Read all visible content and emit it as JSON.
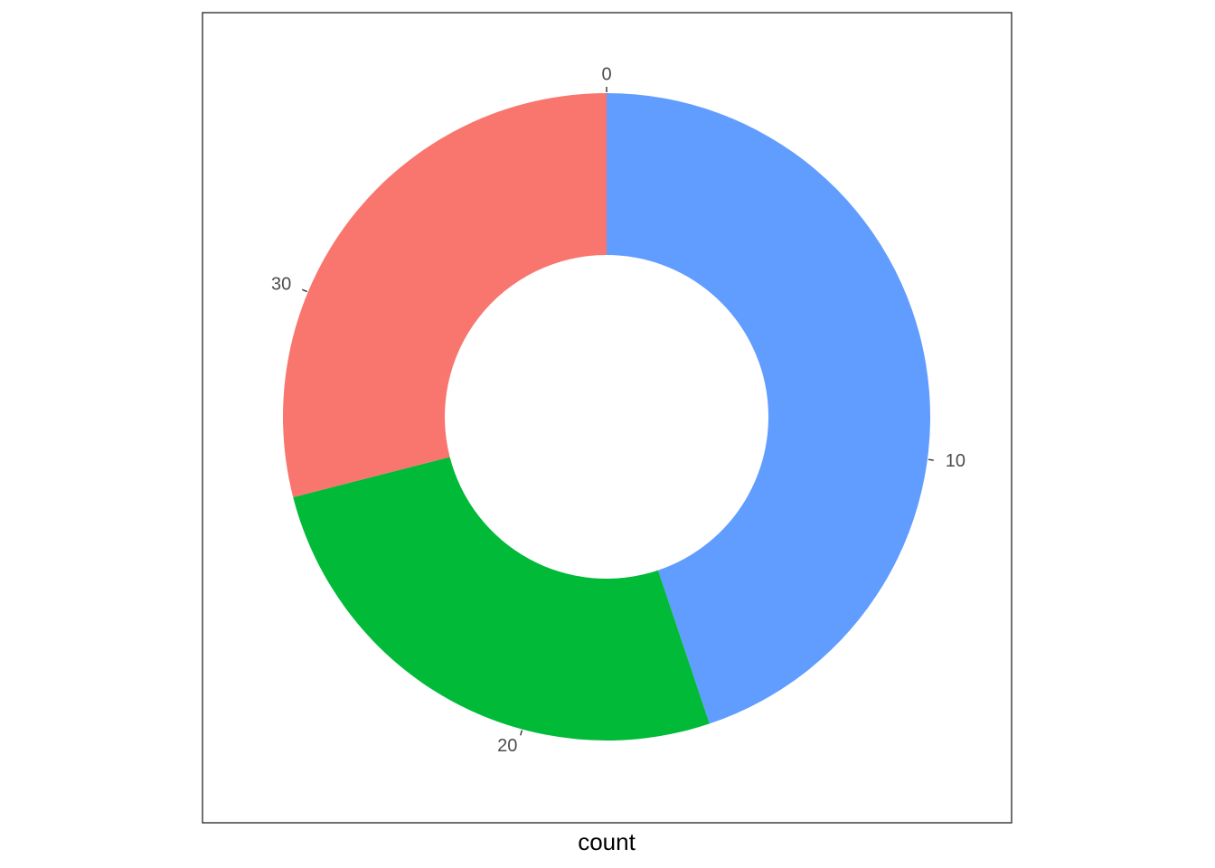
{
  "chart_data": {
    "type": "donut",
    "xlabel": "count",
    "r_ticks": [
      "0",
      "10",
      "20",
      "30"
    ],
    "r_tick_values": [
      0,
      10,
      20,
      30
    ],
    "total": 36.9,
    "direction": "clockwise-from-top",
    "segments": [
      {
        "start": 0.0,
        "end": 16.55,
        "color": "#619CFF"
      },
      {
        "start": 16.55,
        "end": 26.2,
        "color": "#00BA38"
      },
      {
        "start": 26.2,
        "end": 36.9,
        "color": "#F8766D"
      }
    ],
    "legend": "none",
    "grid": false,
    "panel_border": true
  }
}
